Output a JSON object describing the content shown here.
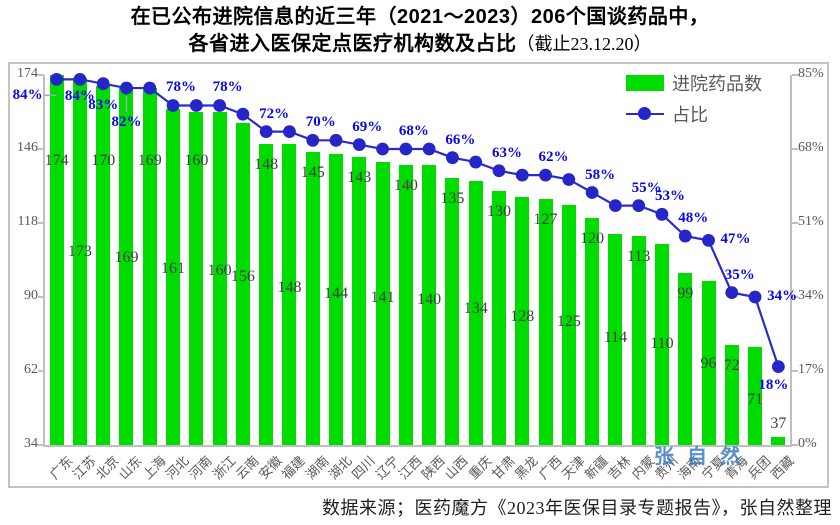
{
  "title": {
    "line1": "在已公布进院信息的近三年（2021～2023）206个国谈药品中，",
    "line2_main": "各省进入医保定点医疗机构数及占比",
    "line2_note": "（截止23.12.20）"
  },
  "legend": {
    "bar_label": "进院药品数",
    "line_label": "占比"
  },
  "watermark": "张自然",
  "caption": "数据来源；医药魔方《2023年医保目录专题报告》，张自然整理",
  "colors": {
    "bar": "#00dc00",
    "line": "#2b2bcc",
    "dot": "#2525c8",
    "pct_label": "#0707ee",
    "bar_label": "#3f3f3f",
    "axis": "#bfbfbf",
    "axis_text": "#595959",
    "xaxis_text": "#595959",
    "legend_text": "#595959",
    "leader": "#a6a6a6",
    "watermark": "#3a7ec2",
    "caption_text": "#1f1f1f",
    "frame_border": "#c3c3c3"
  },
  "chart_data": {
    "type": "bar+line",
    "categories": [
      "广东",
      "江苏",
      "北京",
      "山东",
      "上海",
      "河北",
      "河南",
      "浙江",
      "云南",
      "安徽",
      "福建",
      "湖南",
      "湖北",
      "四川",
      "辽宁",
      "江西",
      "陕西",
      "山西",
      "重庆",
      "甘肃",
      "黑龙",
      "广西",
      "天津",
      "新疆",
      "吉林",
      "内蒙",
      "贵州",
      "海南",
      "宁夏",
      "青海",
      "兵团",
      "西藏"
    ],
    "series": [
      {
        "name": "进院药品数",
        "type": "bar",
        "values": [
          174,
          173,
          170,
          169,
          169,
          161,
          160,
          160,
          156,
          148,
          148,
          145,
          144,
          143,
          141,
          140,
          140,
          135,
          134,
          130,
          128,
          127,
          125,
          120,
          114,
          113,
          110,
          99,
          96,
          72,
          71,
          37
        ]
      },
      {
        "name": "占比",
        "type": "line",
        "unit": "%",
        "values": [
          84,
          84,
          83,
          82,
          82,
          78,
          78,
          78,
          76,
          72,
          72,
          70,
          70,
          69,
          68,
          68,
          68,
          66,
          65,
          63,
          62,
          62,
          61,
          58,
          55,
          55,
          53,
          48,
          47,
          35,
          34,
          18
        ]
      }
    ],
    "pct_labels": [
      {
        "index": 0,
        "text": "84%",
        "pos": "left"
      },
      {
        "index": 1,
        "text": "84%",
        "pos": "below-sm"
      },
      {
        "index": 2,
        "text": "83%",
        "pos": "below-md"
      },
      {
        "index": 3,
        "text": "82%",
        "pos": "below-lg"
      },
      {
        "index": 5,
        "text": "78%",
        "pos": "above"
      },
      {
        "index": 7,
        "text": "78%",
        "pos": "above"
      },
      {
        "index": 9,
        "text": "72%",
        "pos": "above"
      },
      {
        "index": 11,
        "text": "70%",
        "pos": "above"
      },
      {
        "index": 13,
        "text": "69%",
        "pos": "above"
      },
      {
        "index": 15,
        "text": "68%",
        "pos": "above"
      },
      {
        "index": 17,
        "text": "66%",
        "pos": "above"
      },
      {
        "index": 19,
        "text": "63%",
        "pos": "above"
      },
      {
        "index": 21,
        "text": "62%",
        "pos": "above"
      },
      {
        "index": 23,
        "text": "58%",
        "pos": "above"
      },
      {
        "index": 25,
        "text": "55%",
        "pos": "above"
      },
      {
        "index": 26,
        "text": "53%",
        "pos": "above"
      },
      {
        "index": 27,
        "text": "48%",
        "pos": "above"
      },
      {
        "index": 28,
        "text": "47%",
        "pos": "right"
      },
      {
        "index": 29,
        "text": "35%",
        "pos": "above"
      },
      {
        "index": 30,
        "text": "34%",
        "pos": "right"
      },
      {
        "index": 31,
        "text": "18%",
        "pos": "below"
      }
    ],
    "left_axis": {
      "min": 34,
      "max": 174,
      "ticks": [
        174,
        146,
        118,
        90,
        62,
        34
      ]
    },
    "right_axis": {
      "min": 0,
      "max": 85,
      "ticks": [
        85,
        68,
        51,
        34,
        17,
        0
      ],
      "unit": "%"
    },
    "grid": false,
    "legend_position": "top-right-inside"
  }
}
